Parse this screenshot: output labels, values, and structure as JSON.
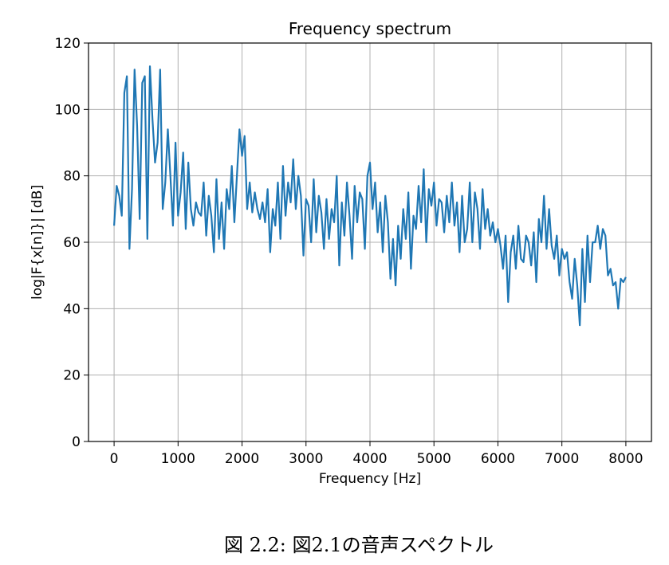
{
  "chart_data": {
    "type": "line",
    "title": "Frequency spectrum",
    "x_label": "Frequency [Hz]",
    "y_label": "log|F{x[n]}| [dB]",
    "caption": "図 2.2: 図2.1の音声スペクトル",
    "x": [
      0,
      40,
      80,
      120,
      160,
      200,
      240,
      280,
      320,
      360,
      400,
      440,
      480,
      520,
      560,
      600,
      640,
      680,
      720,
      760,
      800,
      840,
      880,
      920,
      960,
      1000,
      1040,
      1080,
      1120,
      1160,
      1200,
      1240,
      1280,
      1320,
      1360,
      1400,
      1440,
      1480,
      1520,
      1560,
      1600,
      1640,
      1680,
      1720,
      1760,
      1800,
      1840,
      1880,
      1920,
      1960,
      2000,
      2040,
      2080,
      2120,
      2160,
      2200,
      2240,
      2280,
      2320,
      2360,
      2400,
      2440,
      2480,
      2520,
      2560,
      2600,
      2640,
      2680,
      2720,
      2760,
      2800,
      2840,
      2880,
      2920,
      2960,
      3000,
      3040,
      3080,
      3120,
      3160,
      3200,
      3240,
      3280,
      3320,
      3360,
      3400,
      3440,
      3480,
      3520,
      3560,
      3600,
      3640,
      3680,
      3720,
      3760,
      3800,
      3840,
      3880,
      3920,
      3960,
      4000,
      4040,
      4080,
      4120,
      4160,
      4200,
      4240,
      4280,
      4320,
      4360,
      4400,
      4440,
      4480,
      4520,
      4560,
      4600,
      4640,
      4680,
      4720,
      4760,
      4800,
      4840,
      4880,
      4920,
      4960,
      5000,
      5040,
      5080,
      5120,
      5160,
      5200,
      5240,
      5280,
      5320,
      5360,
      5400,
      5440,
      5480,
      5520,
      5560,
      5600,
      5640,
      5680,
      5720,
      5760,
      5800,
      5840,
      5880,
      5920,
      5960,
      6000,
      6040,
      6080,
      6120,
      6160,
      6200,
      6240,
      6280,
      6320,
      6360,
      6400,
      6440,
      6480,
      6520,
      6560,
      6600,
      6640,
      6680,
      6720,
      6760,
      6800,
      6840,
      6880,
      6920,
      6960,
      7000,
      7040,
      7080,
      7120,
      7160,
      7200,
      7240,
      7280,
      7320,
      7360,
      7400,
      7440,
      7480,
      7520,
      7560,
      7600,
      7640,
      7680,
      7720,
      7760,
      7800,
      7840,
      7880,
      7920,
      7960,
      8000
    ],
    "series": [
      {
        "color": "#1f77b4",
        "values": [
          65,
          77,
          74,
          68,
          105,
          110,
          58,
          76,
          112,
          95,
          67,
          108,
          110,
          61,
          113,
          97,
          84,
          90,
          112,
          70,
          78,
          94,
          80,
          65,
          90,
          68,
          75,
          87,
          64,
          84,
          70,
          65,
          72,
          69,
          68,
          78,
          62,
          74,
          68,
          57,
          79,
          61,
          72,
          58,
          76,
          70,
          83,
          66,
          80,
          94,
          86,
          92,
          70,
          78,
          69,
          75,
          70,
          67,
          72,
          66,
          76,
          57,
          70,
          65,
          78,
          61,
          83,
          68,
          78,
          72,
          85,
          70,
          80,
          74,
          56,
          73,
          71,
          60,
          79,
          63,
          74,
          69,
          58,
          73,
          61,
          70,
          66,
          80,
          53,
          72,
          62,
          78,
          68,
          55,
          77,
          66,
          75,
          73,
          58,
          80,
          84,
          70,
          78,
          63,
          72,
          57,
          74,
          66,
          49,
          61,
          47,
          65,
          55,
          70,
          61,
          75,
          52,
          68,
          64,
          77,
          66,
          82,
          60,
          76,
          71,
          78,
          65,
          73,
          72,
          63,
          74,
          66,
          78,
          65,
          72,
          57,
          74,
          60,
          64,
          78,
          60,
          75,
          70,
          58,
          76,
          64,
          70,
          62,
          66,
          60,
          64,
          59,
          52,
          62,
          42,
          57,
          62,
          52,
          65,
          55,
          54,
          62,
          60,
          53,
          63,
          48,
          67,
          60,
          74,
          58,
          70,
          59,
          55,
          62,
          50,
          58,
          55,
          57,
          48,
          43,
          55,
          47,
          35,
          58,
          42,
          62,
          48,
          60,
          60,
          65,
          58,
          64,
          62,
          50,
          52,
          47,
          48,
          40,
          49,
          48,
          49.5
        ]
      }
    ],
    "xlim": [
      -400,
      8400
    ],
    "ylim": [
      0,
      120
    ],
    "xticks": [
      0,
      1000,
      2000,
      3000,
      4000,
      5000,
      6000,
      7000,
      8000
    ],
    "yticks": [
      0,
      20,
      40,
      60,
      80,
      100,
      120
    ],
    "grid": true
  }
}
